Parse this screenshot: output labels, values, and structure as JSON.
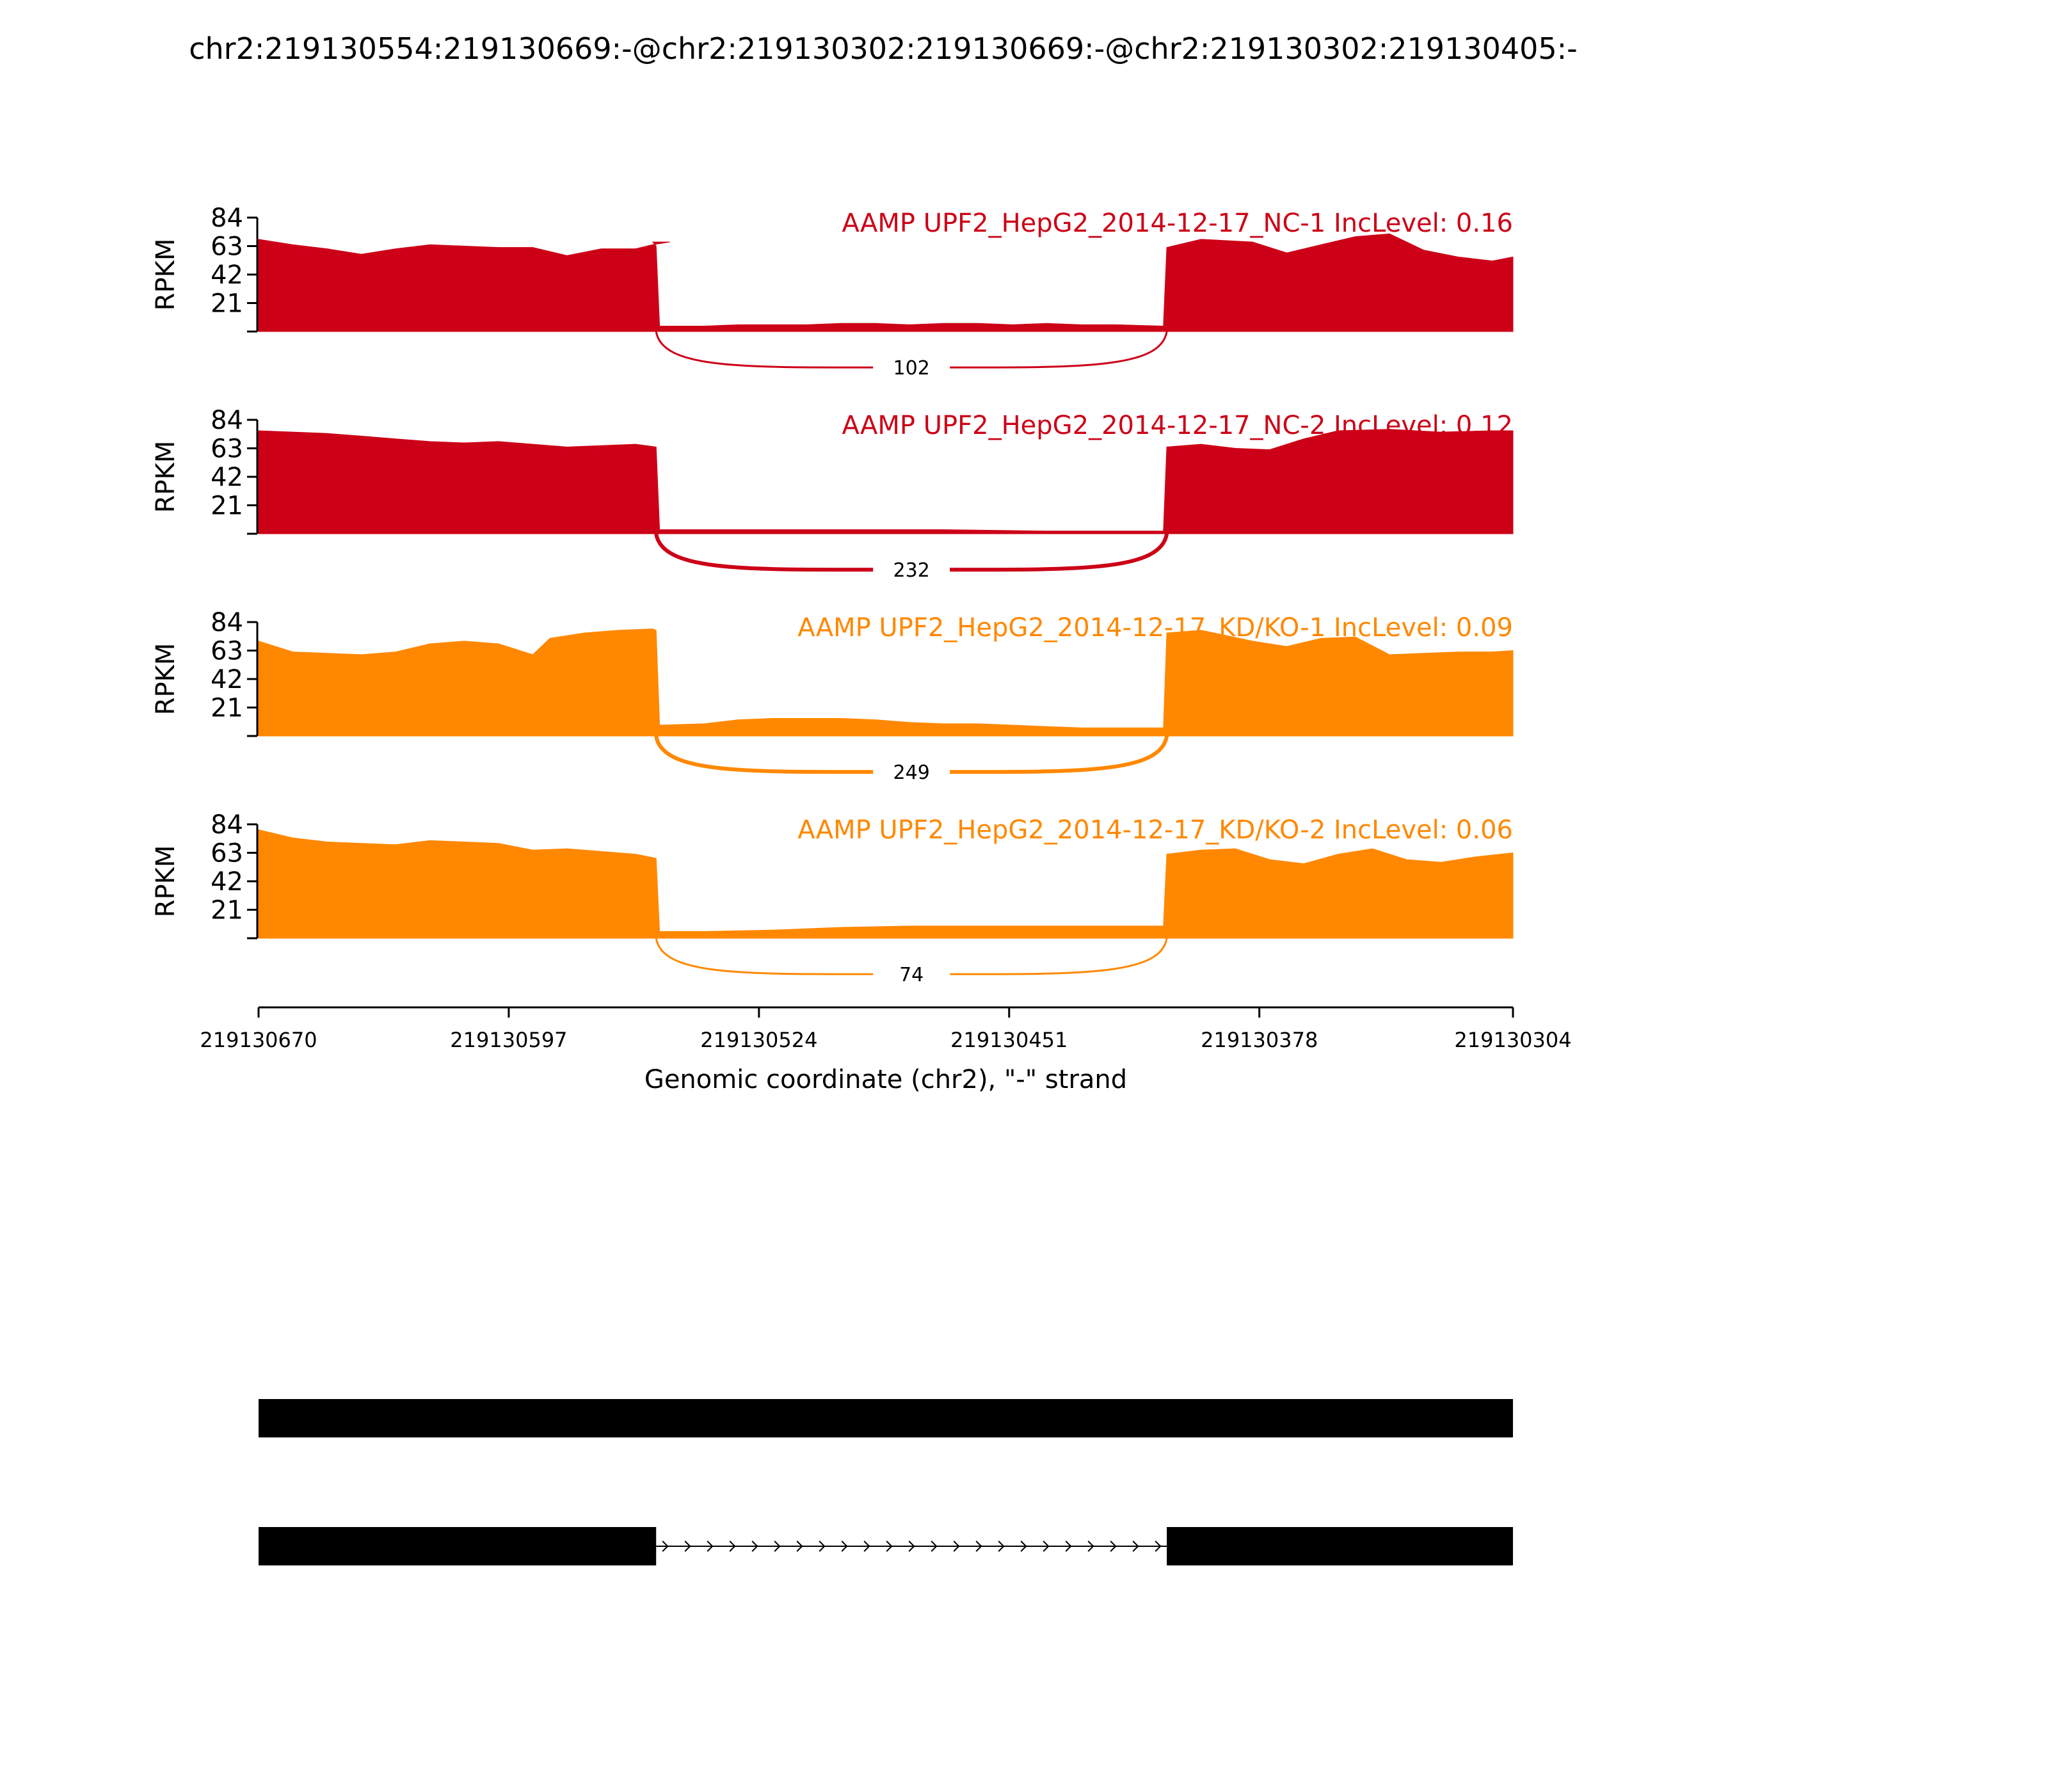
{
  "title": "chr2:219130554:219130669:-@chr2:219130302:219130669:-@chr2:219130302:219130405:-",
  "colors": {
    "nc": "#cc0016",
    "kd": "#ff8800",
    "axis": "#000000",
    "gene": "#000000"
  },
  "chart_data": {
    "type": "area",
    "ylabel": "RPKM",
    "xlabel": "Genomic coordinate (chr2), \"-\" strand",
    "xlim": [
      219130670,
      219130304
    ],
    "ylim": [
      0,
      84
    ],
    "yticks": [
      "84",
      "63",
      "42",
      "21"
    ],
    "xticks": [
      "219130670",
      "219130597",
      "219130524",
      "219130451",
      "219130378",
      "219130304"
    ],
    "series": [
      {
        "name": "AAMP UPF2_HepG2_2014-12-17_NC-1 IncLevel: 0.16",
        "color": "#cc0016",
        "junction_label": "102",
        "junction_weight": 1,
        "coverage": [
          [
            219130670,
            68
          ],
          [
            219130660,
            64
          ],
          [
            219130650,
            61
          ],
          [
            219130640,
            57
          ],
          [
            219130630,
            61
          ],
          [
            219130620,
            64
          ],
          [
            219130610,
            63
          ],
          [
            219130600,
            62
          ],
          [
            219130590,
            62
          ],
          [
            219130580,
            56
          ],
          [
            219130570,
            61
          ],
          [
            219130560,
            61
          ],
          [
            219130555,
            64
          ],
          [
            219130550,
            66
          ],
          [
            219130555,
            66
          ],
          [
            219130554,
            63
          ],
          [
            219130553,
            4
          ],
          [
            219130540,
            4
          ],
          [
            219130530,
            5
          ],
          [
            219130520,
            5
          ],
          [
            219130510,
            5
          ],
          [
            219130500,
            6
          ],
          [
            219130490,
            6
          ],
          [
            219130480,
            5
          ],
          [
            219130470,
            6
          ],
          [
            219130460,
            6
          ],
          [
            219130450,
            5
          ],
          [
            219130440,
            6
          ],
          [
            219130430,
            5
          ],
          [
            219130420,
            5
          ],
          [
            219130406,
            4
          ],
          [
            219130405,
            62
          ],
          [
            219130395,
            68
          ],
          [
            219130380,
            66
          ],
          [
            219130370,
            58
          ],
          [
            219130360,
            64
          ],
          [
            219130350,
            70
          ],
          [
            219130340,
            72
          ],
          [
            219130330,
            60
          ],
          [
            219130320,
            55
          ],
          [
            219130310,
            52
          ],
          [
            219130304,
            55
          ]
        ]
      },
      {
        "name": "AAMP UPF2_HepG2_2014-12-17_NC-2 IncLevel: 0.12",
        "color": "#cc0016",
        "junction_label": "232",
        "junction_weight": 2,
        "coverage": [
          [
            219130670,
            76
          ],
          [
            219130660,
            75
          ],
          [
            219130650,
            74
          ],
          [
            219130640,
            72
          ],
          [
            219130630,
            70
          ],
          [
            219130620,
            68
          ],
          [
            219130610,
            67
          ],
          [
            219130600,
            68
          ],
          [
            219130590,
            66
          ],
          [
            219130580,
            64
          ],
          [
            219130570,
            65
          ],
          [
            219130560,
            66
          ],
          [
            219130554,
            64
          ],
          [
            219130553,
            3
          ],
          [
            219130530,
            3
          ],
          [
            219130500,
            3
          ],
          [
            219130470,
            3
          ],
          [
            219130440,
            2
          ],
          [
            219130406,
            2
          ],
          [
            219130405,
            64
          ],
          [
            219130395,
            66
          ],
          [
            219130385,
            63
          ],
          [
            219130375,
            62
          ],
          [
            219130365,
            70
          ],
          [
            219130355,
            76
          ],
          [
            219130340,
            77
          ],
          [
            219130325,
            75
          ],
          [
            219130310,
            76
          ],
          [
            219130304,
            76
          ]
        ]
      },
      {
        "name": "AAMP UPF2_HepG2_2014-12-17_KD/KO-1 IncLevel: 0.09",
        "color": "#ff8800",
        "junction_label": "249",
        "junction_weight": 2,
        "coverage": [
          [
            219130670,
            70
          ],
          [
            219130660,
            62
          ],
          [
            219130650,
            61
          ],
          [
            219130640,
            60
          ],
          [
            219130630,
            62
          ],
          [
            219130620,
            68
          ],
          [
            219130610,
            70
          ],
          [
            219130600,
            68
          ],
          [
            219130590,
            60
          ],
          [
            219130585,
            72
          ],
          [
            219130575,
            76
          ],
          [
            219130565,
            78
          ],
          [
            219130555,
            79
          ],
          [
            219130554,
            78
          ],
          [
            219130553,
            8
          ],
          [
            219130540,
            9
          ],
          [
            219130530,
            12
          ],
          [
            219130520,
            13
          ],
          [
            219130510,
            13
          ],
          [
            219130500,
            13
          ],
          [
            219130490,
            12
          ],
          [
            219130480,
            10
          ],
          [
            219130470,
            9
          ],
          [
            219130460,
            9
          ],
          [
            219130450,
            8
          ],
          [
            219130440,
            7
          ],
          [
            219130430,
            6
          ],
          [
            219130406,
            6
          ],
          [
            219130405,
            76
          ],
          [
            219130395,
            78
          ],
          [
            219130380,
            70
          ],
          [
            219130370,
            66
          ],
          [
            219130360,
            72
          ],
          [
            219130350,
            73
          ],
          [
            219130340,
            60
          ],
          [
            219130330,
            61
          ],
          [
            219130320,
            62
          ],
          [
            219130310,
            62
          ],
          [
            219130304,
            63
          ]
        ]
      },
      {
        "name": "AAMP UPF2_HepG2_2014-12-17_KD/KO-2 IncLevel: 0.06",
        "color": "#ff8800",
        "junction_label": "74",
        "junction_weight": 1,
        "coverage": [
          [
            219130670,
            80
          ],
          [
            219130660,
            74
          ],
          [
            219130650,
            71
          ],
          [
            219130640,
            70
          ],
          [
            219130630,
            69
          ],
          [
            219130620,
            72
          ],
          [
            219130610,
            71
          ],
          [
            219130600,
            70
          ],
          [
            219130590,
            65
          ],
          [
            219130580,
            66
          ],
          [
            219130570,
            64
          ],
          [
            219130560,
            62
          ],
          [
            219130554,
            59
          ],
          [
            219130553,
            5
          ],
          [
            219130540,
            5
          ],
          [
            219130520,
            6
          ],
          [
            219130500,
            8
          ],
          [
            219130480,
            9
          ],
          [
            219130460,
            9
          ],
          [
            219130440,
            9
          ],
          [
            219130420,
            9
          ],
          [
            219130406,
            9
          ],
          [
            219130405,
            62
          ],
          [
            219130395,
            65
          ],
          [
            219130385,
            66
          ],
          [
            219130375,
            58
          ],
          [
            219130365,
            55
          ],
          [
            219130355,
            62
          ],
          [
            219130345,
            66
          ],
          [
            219130335,
            58
          ],
          [
            219130325,
            56
          ],
          [
            219130315,
            60
          ],
          [
            219130304,
            63
          ]
        ]
      }
    ],
    "junction": {
      "start": 219130554,
      "end": 219130405
    },
    "gene_models": [
      {
        "exons": [
          [
            219130670,
            219130304
          ]
        ]
      },
      {
        "exons": [
          [
            219130670,
            219130554
          ],
          [
            219130405,
            219130304
          ]
        ]
      }
    ]
  }
}
